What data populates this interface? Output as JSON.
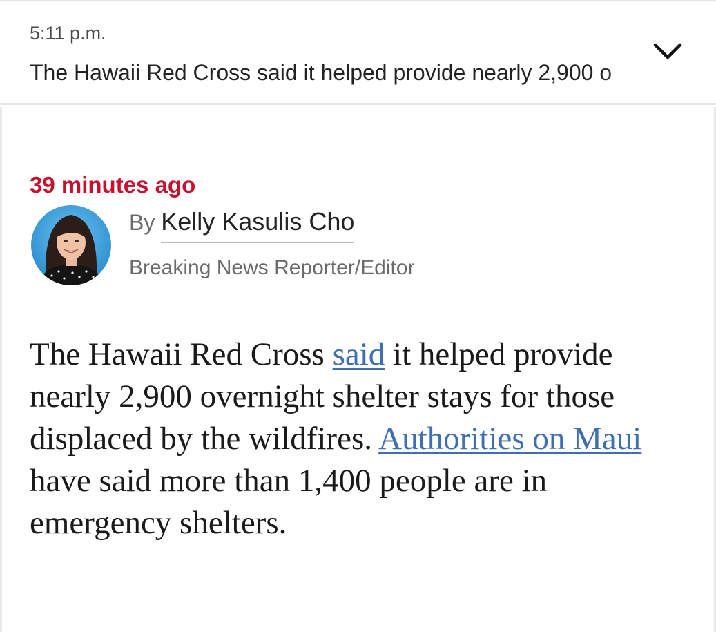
{
  "header": {
    "time": "5:11 p.m.",
    "summary": "The Hawaii Red Cross said it helped provide nearly 2,900 o",
    "toggle_icon": "chevron-down-icon"
  },
  "post": {
    "timestamp": "39 minutes ago",
    "byline_prefix": "By",
    "author": "Kelly Kasulis Cho",
    "role": "Breaking News Reporter/Editor",
    "avatar_icon": "author-avatar",
    "accent_color": "#c8102e",
    "link_color": "#3e6fb4",
    "body": {
      "part1": "The Hawaii Red Cross ",
      "link1": "said",
      "part2": " it helped provide nearly 2,900 overnight shelter stays for those displaced by the wildfires. ",
      "link2": "Authorities on Maui",
      "part3": " have said more than 1,400 people are in emergency shelters."
    }
  }
}
